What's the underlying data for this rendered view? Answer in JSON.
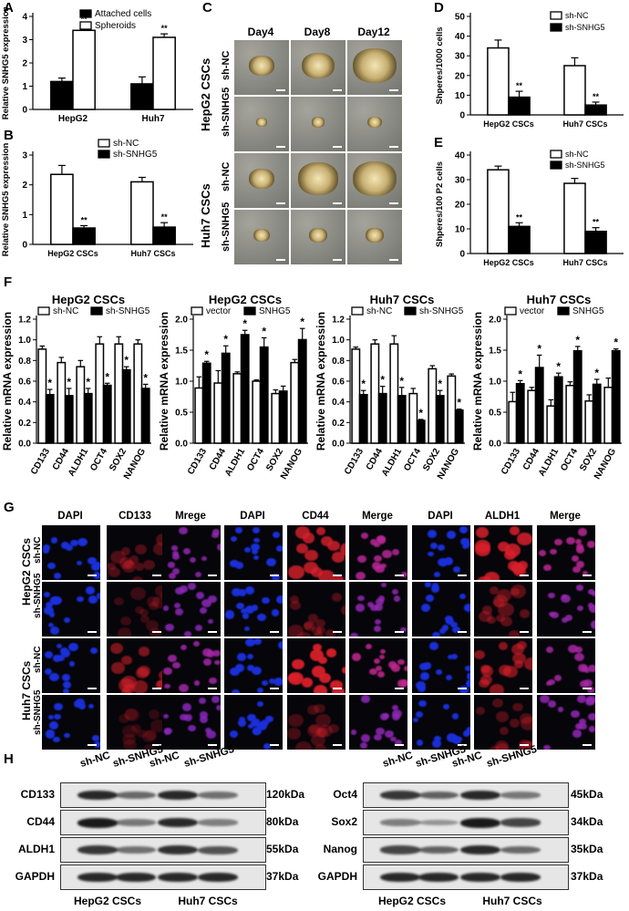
{
  "panels": {
    "A": {
      "letter": "A"
    },
    "B": {
      "letter": "B"
    },
    "C": {
      "letter": "C",
      "columns": [
        "Day4",
        "Day8",
        "Day12"
      ],
      "groups": [
        "HepG2 CSCs",
        "Huh7 CSCs"
      ],
      "rows": [
        "sh-NC",
        "sh-SNHG5",
        "sh-NC",
        "sh-SNHG5"
      ]
    },
    "D": {
      "letter": "D"
    },
    "E": {
      "letter": "E"
    },
    "F": {
      "letter": "F"
    },
    "G": {
      "letter": "G",
      "column_heads": [
        "DAPI",
        "CD133",
        "Mrege",
        "DAPI",
        "CD44",
        "Merge",
        "DAPI",
        "ALDH1",
        "Merge"
      ],
      "groups": [
        "HepG2 CSCs",
        "Huh7 CSCs"
      ],
      "rows": [
        "sh-NC",
        "sh-SNHG5",
        "sh-NC",
        "sh-SNHG5"
      ]
    },
    "H": {
      "letter": "H",
      "left": {
        "lanes": [
          "sh-NC",
          "sh-SNHG5",
          "sh-NC",
          "sh-SNHG5"
        ],
        "proteins": [
          "CD133",
          "CD44",
          "ALDH1",
          "GAPDH"
        ],
        "kda": [
          "120kDa",
          "80kDa",
          "55kDa",
          "37kDa"
        ],
        "groups": [
          "HepG2 CSCs",
          "Huh7 CSCs"
        ]
      },
      "right": {
        "lanes": [
          "sh-NC",
          "sh-SNHG5",
          "sh-NC",
          "sh-SHNG5"
        ],
        "proteins": [
          "Oct4",
          "Sox2",
          "Nanog",
          "GAPDH"
        ],
        "kda": [
          "45kDa",
          "34kDa",
          "35kDa",
          "37kDa"
        ],
        "groups": [
          "HepG2 CSCs",
          "Huh7 CSCs"
        ]
      }
    }
  },
  "colors": {
    "white_bar": "#ffffff",
    "black_bar": "#000000",
    "bright_field": "#8a8a84",
    "dapi": "#1a2fd8",
    "red": "#d8202a",
    "merge": "#8a3fd0"
  },
  "chart_data": [
    {
      "id": "A",
      "type": "bar",
      "categories": [
        "HepG2",
        "Huh7"
      ],
      "ylabel": "Relative SNHG5 expression",
      "ylim": [
        0,
        4
      ],
      "yticks": [
        0,
        1,
        2,
        3,
        4
      ],
      "legend_position": "top-right",
      "series": [
        {
          "name": "Attached cells",
          "values": [
            1.2,
            1.1
          ],
          "errors": [
            0.15,
            0.3
          ],
          "fill": "black",
          "sig": [
            "",
            ""
          ]
        },
        {
          "name": "Spheroids",
          "values": [
            3.4,
            3.1
          ],
          "errors": [
            0.25,
            0.15
          ],
          "fill": "white",
          "sig": [
            "**",
            "**"
          ]
        }
      ]
    },
    {
      "id": "B",
      "type": "bar",
      "categories": [
        "HepG2 CSCs",
        "Huh7 CSCs"
      ],
      "ylabel": "Relative SNHG5 expression",
      "ylim": [
        0,
        3
      ],
      "yticks": [
        0,
        1,
        2,
        3
      ],
      "legend_position": "top-right",
      "series": [
        {
          "name": "sh-NC",
          "values": [
            2.35,
            2.1
          ],
          "errors": [
            0.3,
            0.15
          ],
          "fill": "white",
          "sig": [
            "",
            ""
          ]
        },
        {
          "name": "sh-SNHG5",
          "values": [
            0.55,
            0.58
          ],
          "errors": [
            0.08,
            0.15
          ],
          "fill": "black",
          "sig": [
            "**",
            "**"
          ]
        }
      ]
    },
    {
      "id": "D",
      "type": "bar",
      "categories": [
        "HepG2 CSCs",
        "Huh7 CSCs"
      ],
      "ylabel": "Shperes/1000 cells",
      "ylim": [
        0,
        50
      ],
      "yticks": [
        0,
        10,
        20,
        30,
        40,
        50
      ],
      "legend_position": "top-right",
      "series": [
        {
          "name": "sh-NC",
          "values": [
            34,
            25
          ],
          "errors": [
            4,
            4
          ],
          "fill": "white",
          "sig": [
            "",
            ""
          ]
        },
        {
          "name": "sh-SNHG5",
          "values": [
            9,
            5
          ],
          "errors": [
            3,
            1.5
          ],
          "fill": "black",
          "sig": [
            "**",
            "**"
          ]
        }
      ]
    },
    {
      "id": "E",
      "type": "bar",
      "categories": [
        "HepG2 CSCs",
        "Huh7 CSCs"
      ],
      "ylabel": "Shperes/100 P2 cells",
      "ylim": [
        0,
        40
      ],
      "yticks": [
        0,
        10,
        20,
        30,
        40
      ],
      "legend_position": "top-right",
      "series": [
        {
          "name": "sh-NC",
          "values": [
            34,
            28.5
          ],
          "errors": [
            1.5,
            2
          ],
          "fill": "white",
          "sig": [
            "",
            ""
          ]
        },
        {
          "name": "sh-SNHG5",
          "values": [
            11,
            9
          ],
          "errors": [
            1.5,
            1.5
          ],
          "fill": "black",
          "sig": [
            "**",
            "**"
          ]
        }
      ]
    },
    {
      "id": "F1",
      "type": "bar",
      "title": "HepG2 CSCs",
      "categories": [
        "CD133",
        "CD44",
        "ALDH1",
        "OCT4",
        "SOX2",
        "NANOG"
      ],
      "ylabel": "Relative mRNA expression",
      "ylim": [
        0,
        1.2
      ],
      "yticks": [
        0,
        0.2,
        0.4,
        0.6,
        0.8,
        1.0,
        1.2
      ],
      "legend_position": "top",
      "series": [
        {
          "name": "sh-NC",
          "values": [
            0.91,
            0.78,
            0.74,
            0.96,
            0.96,
            0.96
          ],
          "errors": [
            0.03,
            0.05,
            0.06,
            0.07,
            0.07,
            0.04
          ],
          "fill": "white",
          "sig": [
            "",
            "",
            "",
            "",
            "",
            ""
          ]
        },
        {
          "name": "sh-SNHG5",
          "values": [
            0.47,
            0.46,
            0.48,
            0.56,
            0.71,
            0.53
          ],
          "errors": [
            0.05,
            0.07,
            0.05,
            0.02,
            0.03,
            0.04
          ],
          "fill": "black",
          "sig": [
            "*",
            "*",
            "*",
            "*",
            "*",
            "*"
          ]
        }
      ]
    },
    {
      "id": "F2",
      "type": "bar",
      "title": "HepG2 CSCs",
      "categories": [
        "CD133",
        "CD44",
        "ALDH1",
        "OCT4",
        "SOX2",
        "NANOG"
      ],
      "ylabel": "Relative mRNA expression",
      "ylim": [
        0,
        2.0
      ],
      "yticks": [
        0,
        0.5,
        1.0,
        1.5,
        2.0
      ],
      "legend_position": "top",
      "series": [
        {
          "name": "vector",
          "values": [
            0.89,
            0.97,
            1.12,
            1.0,
            0.8,
            1.3
          ],
          "errors": [
            0.18,
            0.2,
            0.03,
            0.02,
            0.06,
            0.05
          ],
          "fill": "white",
          "sig": [
            "",
            "",
            "",
            "",
            "",
            ""
          ]
        },
        {
          "name": "SNHG5",
          "values": [
            1.29,
            1.45,
            1.75,
            1.55,
            0.84,
            1.67
          ],
          "errors": [
            0.03,
            0.12,
            0.07,
            0.15,
            0.08,
            0.18
          ],
          "fill": "black",
          "sig": [
            "*",
            "*",
            "*",
            "*",
            "",
            "*"
          ]
        }
      ]
    },
    {
      "id": "F3",
      "type": "bar",
      "title": "Huh7 CSCs",
      "categories": [
        "CD133",
        "CD44",
        "ALDH1",
        "OCT4",
        "SOX2",
        "NANOG"
      ],
      "ylabel": "Relative mRNA expression",
      "ylim": [
        0,
        1.2
      ],
      "yticks": [
        0,
        0.2,
        0.4,
        0.6,
        0.8,
        1.0,
        1.2
      ],
      "legend_position": "top",
      "series": [
        {
          "name": "sh-NC",
          "values": [
            0.91,
            0.96,
            0.96,
            0.48,
            0.72,
            0.65
          ],
          "errors": [
            0.02,
            0.04,
            0.08,
            0.05,
            0.03,
            0.02
          ],
          "fill": "white",
          "sig": [
            "",
            "",
            "",
            "",
            "",
            ""
          ]
        },
        {
          "name": "sh-SNHG5",
          "values": [
            0.47,
            0.48,
            0.46,
            0.22,
            0.46,
            0.32
          ],
          "errors": [
            0.04,
            0.07,
            0.08,
            0.01,
            0.05,
            0.01
          ],
          "fill": "black",
          "sig": [
            "*",
            "*",
            "*",
            "*",
            "*",
            "*"
          ]
        }
      ]
    },
    {
      "id": "F4",
      "type": "bar",
      "title": "Huh7 CSCs",
      "categories": [
        "CD133",
        "CD44",
        "ALDH1",
        "OCT4",
        "SOX2",
        "NANOG"
      ],
      "ylabel": "Relative mRNA expression",
      "ylim": [
        0,
        2.0
      ],
      "yticks": [
        0,
        0.5,
        1.0,
        1.5,
        2.0
      ],
      "legend_position": "top",
      "series": [
        {
          "name": "vector",
          "values": [
            0.67,
            0.85,
            0.6,
            0.93,
            0.68,
            0.9
          ],
          "errors": [
            0.15,
            0.05,
            0.1,
            0.06,
            0.1,
            0.15
          ],
          "fill": "white",
          "sig": [
            "",
            "",
            "",
            "",
            "",
            ""
          ]
        },
        {
          "name": "SNHG5",
          "values": [
            0.96,
            1.22,
            1.07,
            1.49,
            0.95,
            1.49
          ],
          "errors": [
            0.05,
            0.2,
            0.06,
            0.07,
            0.08,
            0.03
          ],
          "fill": "black",
          "sig": [
            "*",
            "*",
            "*",
            "*",
            "*",
            "*"
          ]
        }
      ]
    }
  ]
}
